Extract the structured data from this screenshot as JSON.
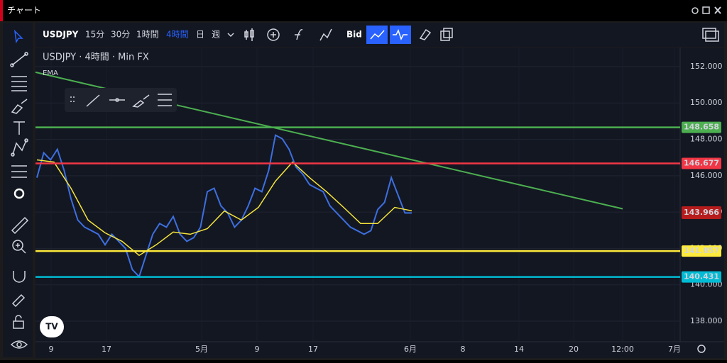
{
  "window": {
    "title": "チャート"
  },
  "toolbar": {
    "symbol": "USDJPY",
    "intervals": [
      "15分",
      "30分",
      "1時間",
      "4時間",
      "日",
      "週"
    ],
    "price_type": "Bid"
  },
  "chart_data": {
    "type": "line",
    "legend_title": "USDJPY · 4時間 · Min FX",
    "indicator": "EMA",
    "series": [
      {
        "color": "#3d6fe0",
        "values": [
          145.89,
          147.26,
          146.87,
          147.45,
          146.28,
          144.73,
          143.56,
          143.17,
          142.98,
          142.78,
          142.2,
          142.78,
          142.39,
          142.0,
          140.84,
          140.45,
          141.62,
          142.78,
          143.37,
          143.17,
          143.76,
          142.78,
          142.39,
          142.59,
          143.17,
          145.12,
          145.31,
          144.34,
          143.95,
          143.17,
          143.56,
          144.34,
          145.31,
          145.12,
          146.28,
          148.23,
          148.03,
          147.45,
          146.48,
          146.09,
          145.51,
          145.31,
          145.12,
          144.34,
          143.95,
          143.56,
          143.17,
          142.98,
          142.78,
          142.98,
          144.14,
          144.53,
          145.89,
          144.92,
          143.95,
          143.95
        ]
      },
      {
        "color": "#f5e43c",
        "values": [
          146.87,
          146.75,
          145.31,
          143.56,
          142.86,
          142.39,
          141.62,
          142.2,
          142.9,
          142.78,
          143.09,
          144.06,
          143.56,
          144.26,
          145.7,
          146.75,
          145.89,
          145.12,
          144.26,
          143.37,
          143.37,
          144.26,
          144.07
        ]
      }
    ],
    "levels": [
      {
        "value": 148.658,
        "color": "#4caf50"
      },
      {
        "value": 146.677,
        "color": "#f23645"
      },
      {
        "value": 141.857,
        "color": "#ffeb3b"
      },
      {
        "value": 140.431,
        "color": "#00bcd4"
      }
    ],
    "current_price": {
      "value": 143.966,
      "color": "#b71c1c"
    },
    "trend_line": {
      "values": [
        151.69,
        144.18
      ],
      "color": "#4caf50"
    },
    "ylim": [
      136.87,
      153.05
    ],
    "yticks": [
      {
        "value": 152,
        "label": "152.000"
      },
      {
        "value": 150,
        "label": "150.000"
      },
      {
        "value": 148,
        "label": "148.000"
      },
      {
        "value": 146,
        "label": "146.000"
      },
      {
        "value": 144,
        "label": "144.000"
      },
      {
        "value": 142,
        "label": "142.000"
      },
      {
        "value": 140,
        "label": "140.000"
      },
      {
        "value": 138,
        "label": "138.000"
      }
    ],
    "grid": true,
    "time_labels": [
      "9",
      "17",
      "5月",
      "9",
      "17",
      "6月",
      "8",
      "14",
      "20",
      "12:00",
      "7月"
    ]
  }
}
